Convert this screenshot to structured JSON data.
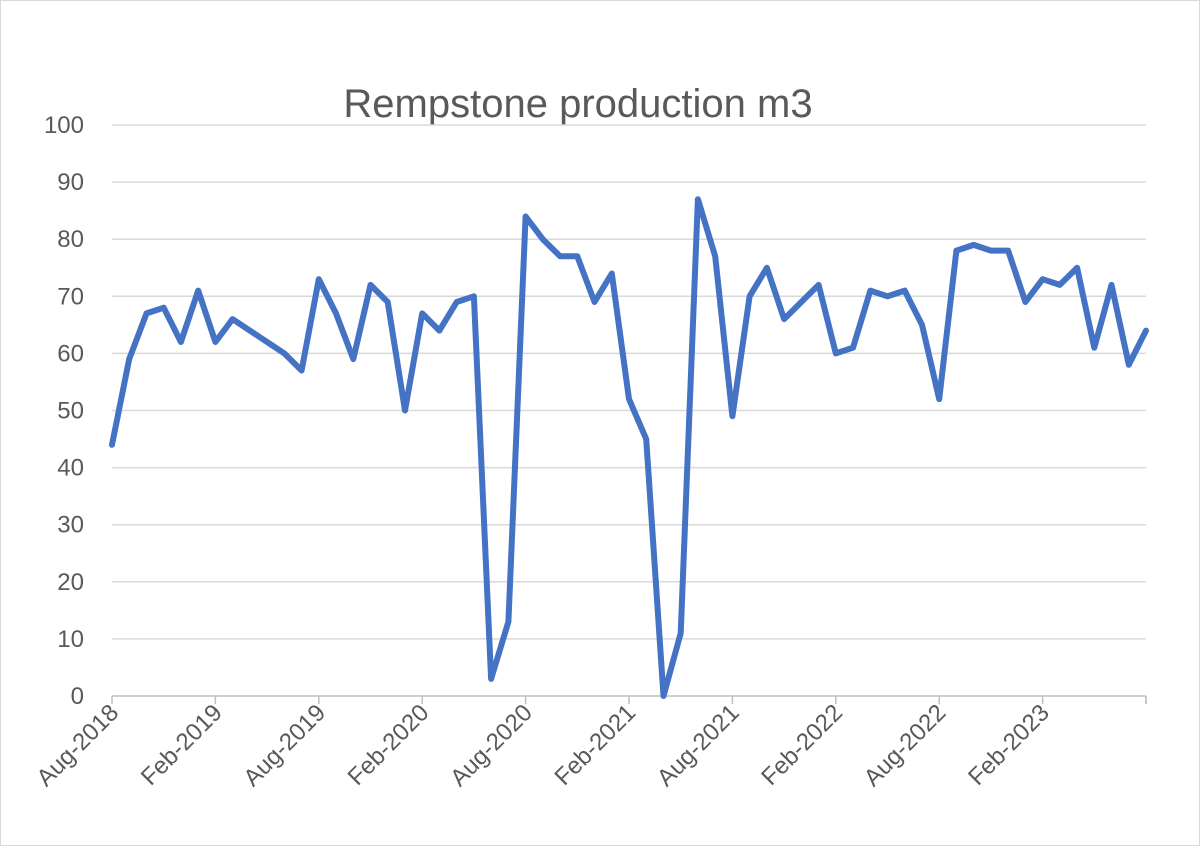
{
  "chart_data": {
    "type": "line",
    "title": "Rempstone production m3",
    "xlabel": "",
    "ylabel": "",
    "ylim": [
      0,
      100
    ],
    "yticks": [
      0,
      10,
      20,
      30,
      40,
      50,
      60,
      70,
      80,
      90,
      100
    ],
    "grid": true,
    "legend": "none",
    "x_start": "Aug-2018",
    "x_end": "Aug-2023",
    "x_tick_labels": [
      "Aug-2018",
      "Feb-2019",
      "Aug-2019",
      "Feb-2020",
      "Aug-2020",
      "Feb-2021",
      "Aug-2021",
      "Feb-2022",
      "Aug-2022",
      "Feb-2023"
    ],
    "colors": {
      "line": "#4472C4",
      "grid": "#d9d9d9",
      "axis": "#bfbfbf",
      "text": "#595959"
    },
    "series": [
      {
        "x": [
          "Aug-2018",
          "Sep-2018",
          "Oct-2018",
          "Nov-2018",
          "Dec-2018",
          "Jan-2019",
          "Feb-2019",
          "Mar-2019",
          "Apr-2019",
          "May-2019",
          "Jun-2019",
          "Jul-2019",
          "Aug-2019",
          "Sep-2019",
          "Oct-2019",
          "Nov-2019",
          "Dec-2019",
          "Jan-2020",
          "Feb-2020",
          "Mar-2020",
          "Apr-2020",
          "May-2020",
          "Jun-2020",
          "Jul-2020",
          "Aug-2020",
          "Sep-2020",
          "Oct-2020",
          "Nov-2020",
          "Dec-2020",
          "Jan-2021",
          "Feb-2021",
          "Mar-2021",
          "Apr-2021",
          "May-2021",
          "Jun-2021",
          "Jul-2021",
          "Aug-2021",
          "Sep-2021",
          "Oct-2021",
          "Nov-2021",
          "Dec-2021",
          "Jan-2022",
          "Feb-2022",
          "Mar-2022",
          "Apr-2022",
          "May-2022",
          "Jun-2022",
          "Jul-2022",
          "Aug-2022",
          "Sep-2022",
          "Oct-2022",
          "Nov-2022",
          "Dec-2022",
          "Jan-2023",
          "Feb-2023",
          "Mar-2023",
          "Apr-2023",
          "May-2023",
          "Jun-2023",
          "Jul-2023",
          "Aug-2023"
        ],
        "values": [
          44,
          59,
          67,
          68,
          62,
          71,
          62,
          66,
          64,
          62,
          60,
          57,
          73,
          67,
          59,
          72,
          69,
          50,
          67,
          64,
          69,
          70,
          3,
          13,
          84,
          80,
          77,
          77,
          69,
          74,
          52,
          45,
          0,
          11,
          87,
          77,
          49,
          70,
          75,
          66,
          69,
          72,
          60,
          61,
          71,
          70,
          71,
          65,
          52,
          78,
          79,
          78,
          78,
          69,
          73,
          72,
          75,
          61,
          72,
          58,
          64
        ]
      }
    ]
  }
}
